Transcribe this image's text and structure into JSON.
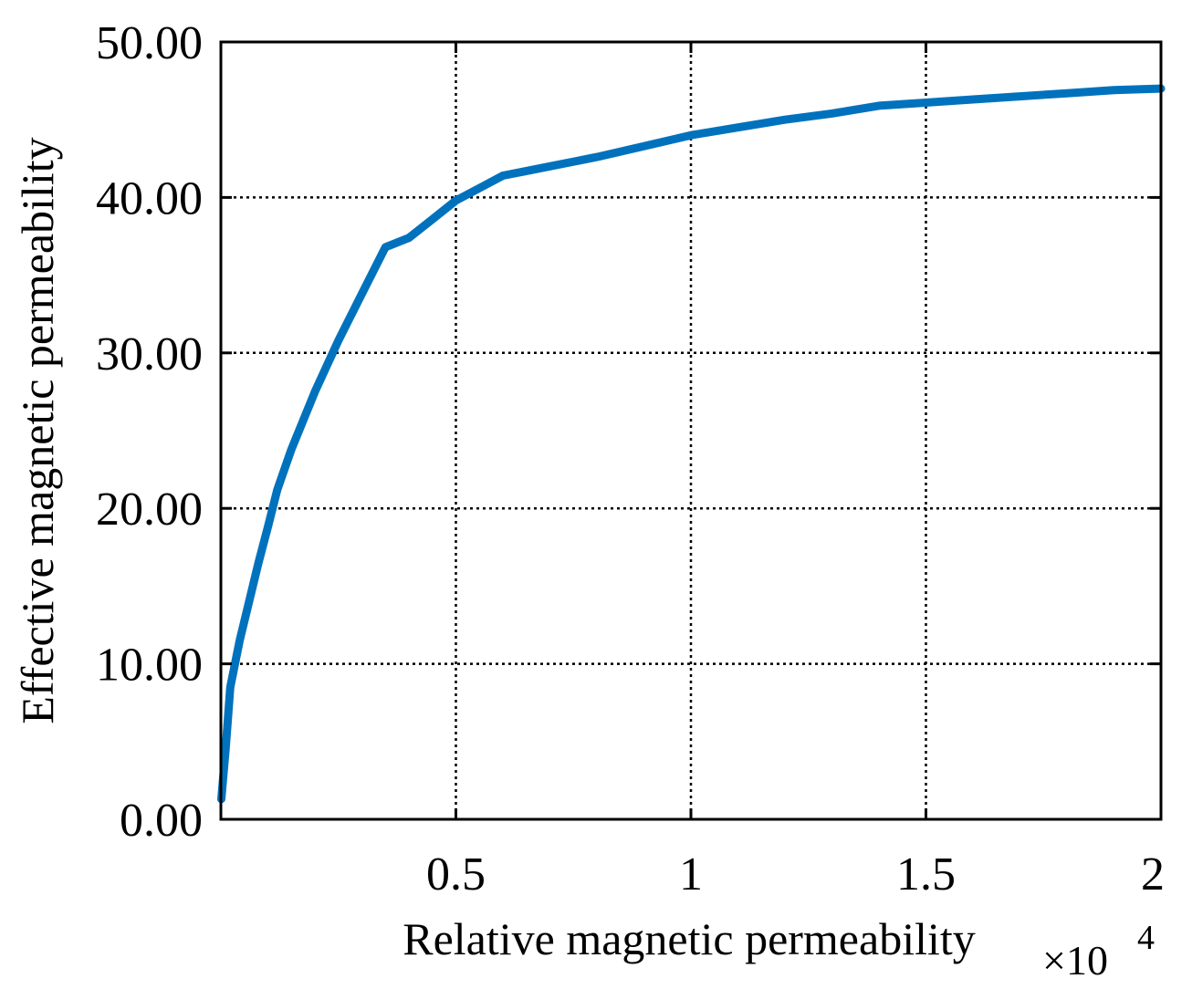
{
  "chart_data": {
    "type": "line",
    "title": "",
    "xlabel": "Relative magnetic permeability",
    "ylabel": "Effective magnetic permeability",
    "x_multiplier": {
      "base": "×10",
      "exponent": "4"
    },
    "xlim": [
      0,
      2
    ],
    "ylim": [
      0,
      50
    ],
    "x_ticks": [
      {
        "value": 0.5,
        "label": "0.5"
      },
      {
        "value": 1,
        "label": "1"
      },
      {
        "value": 1.5,
        "label": "1.5"
      },
      {
        "value": 2,
        "label": "2"
      }
    ],
    "y_ticks": [
      {
        "value": 0,
        "label": "0.00"
      },
      {
        "value": 10,
        "label": "10.00"
      },
      {
        "value": 20,
        "label": "20.00"
      },
      {
        "value": 30,
        "label": "30.00"
      },
      {
        "value": 40,
        "label": "40.00"
      },
      {
        "value": 50,
        "label": "50.00"
      }
    ],
    "grid": true,
    "series": [
      {
        "color": "#0072BD",
        "x": [
          0.001,
          0.01,
          0.02,
          0.04,
          0.06,
          0.08,
          0.1,
          0.12,
          0.15,
          0.2,
          0.25,
          0.3,
          0.35,
          0.4,
          0.45,
          0.5,
          0.55,
          0.6,
          0.65,
          0.7,
          0.8,
          0.9,
          1.0,
          1.1,
          1.2,
          1.3,
          1.4,
          1.5,
          1.6,
          1.7,
          1.8,
          1.9,
          2.0
        ],
        "y": [
          1.3,
          4.5,
          8.5,
          11.5,
          14.0,
          16.5,
          18.8,
          21.2,
          23.8,
          27.5,
          30.8,
          33.8,
          36.8,
          37.4,
          38.6,
          39.8,
          40.6,
          41.4,
          41.7,
          42.0,
          42.6,
          43.3,
          44.0,
          44.5,
          45.0,
          45.4,
          45.9,
          46.1,
          46.3,
          46.5,
          46.7,
          46.9,
          47.0
        ]
      }
    ]
  }
}
